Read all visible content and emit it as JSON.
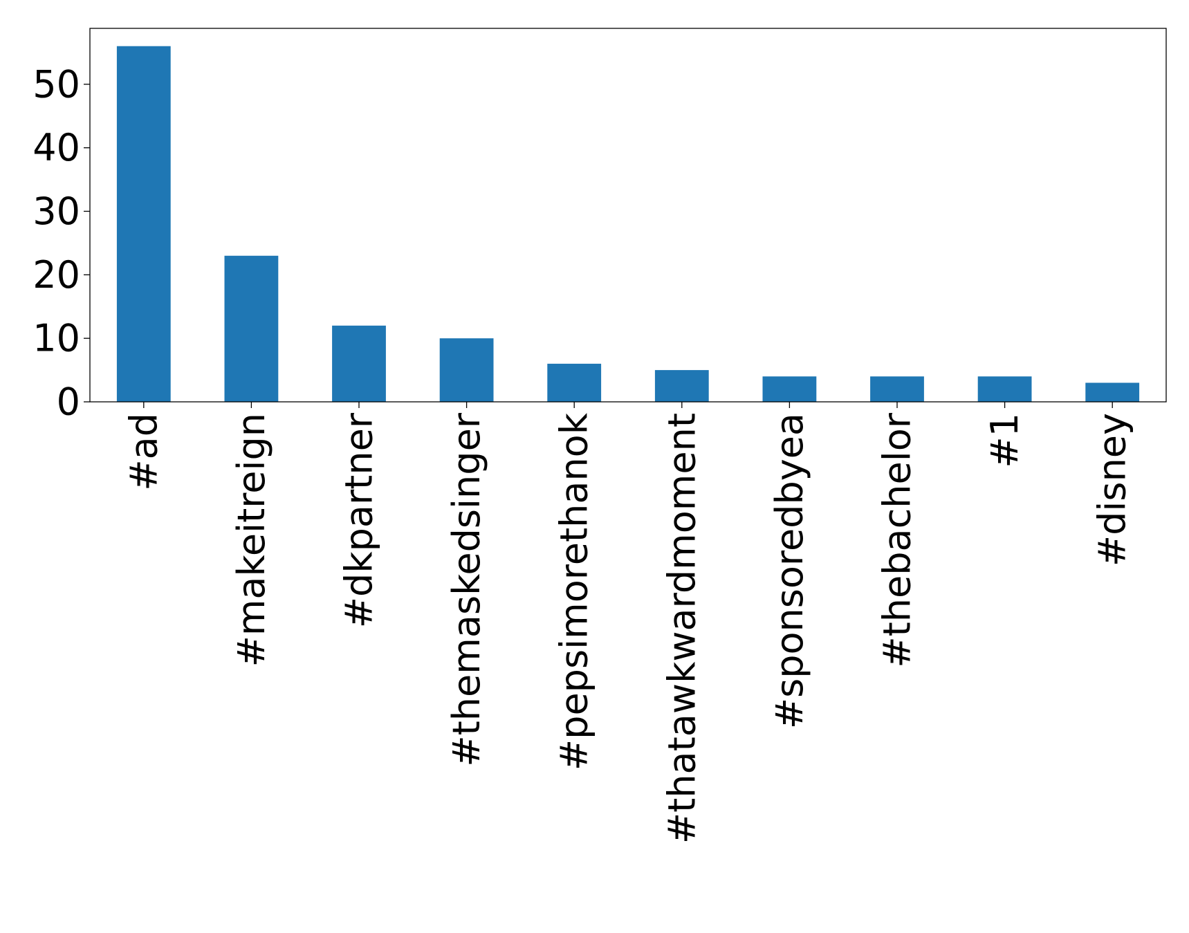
{
  "chart_data": {
    "type": "bar",
    "title": "",
    "xlabel": "",
    "ylabel": "",
    "categories": [
      "#ad",
      "#makeitreign",
      "#dkpartner",
      "#themaskedsinger",
      "#pepsimorethanok",
      "#thatawkwardmoment",
      "#sponsoredbyea",
      "#thebachelor",
      "#1",
      "#disney"
    ],
    "values": [
      56,
      23,
      12,
      10,
      6,
      5,
      4,
      4,
      4,
      3
    ],
    "ylim": [
      0,
      58.8
    ],
    "yticks": [
      0,
      10,
      20,
      30,
      40,
      50
    ],
    "grid": false,
    "legend": "none",
    "bar_color": "#1f77b4"
  }
}
